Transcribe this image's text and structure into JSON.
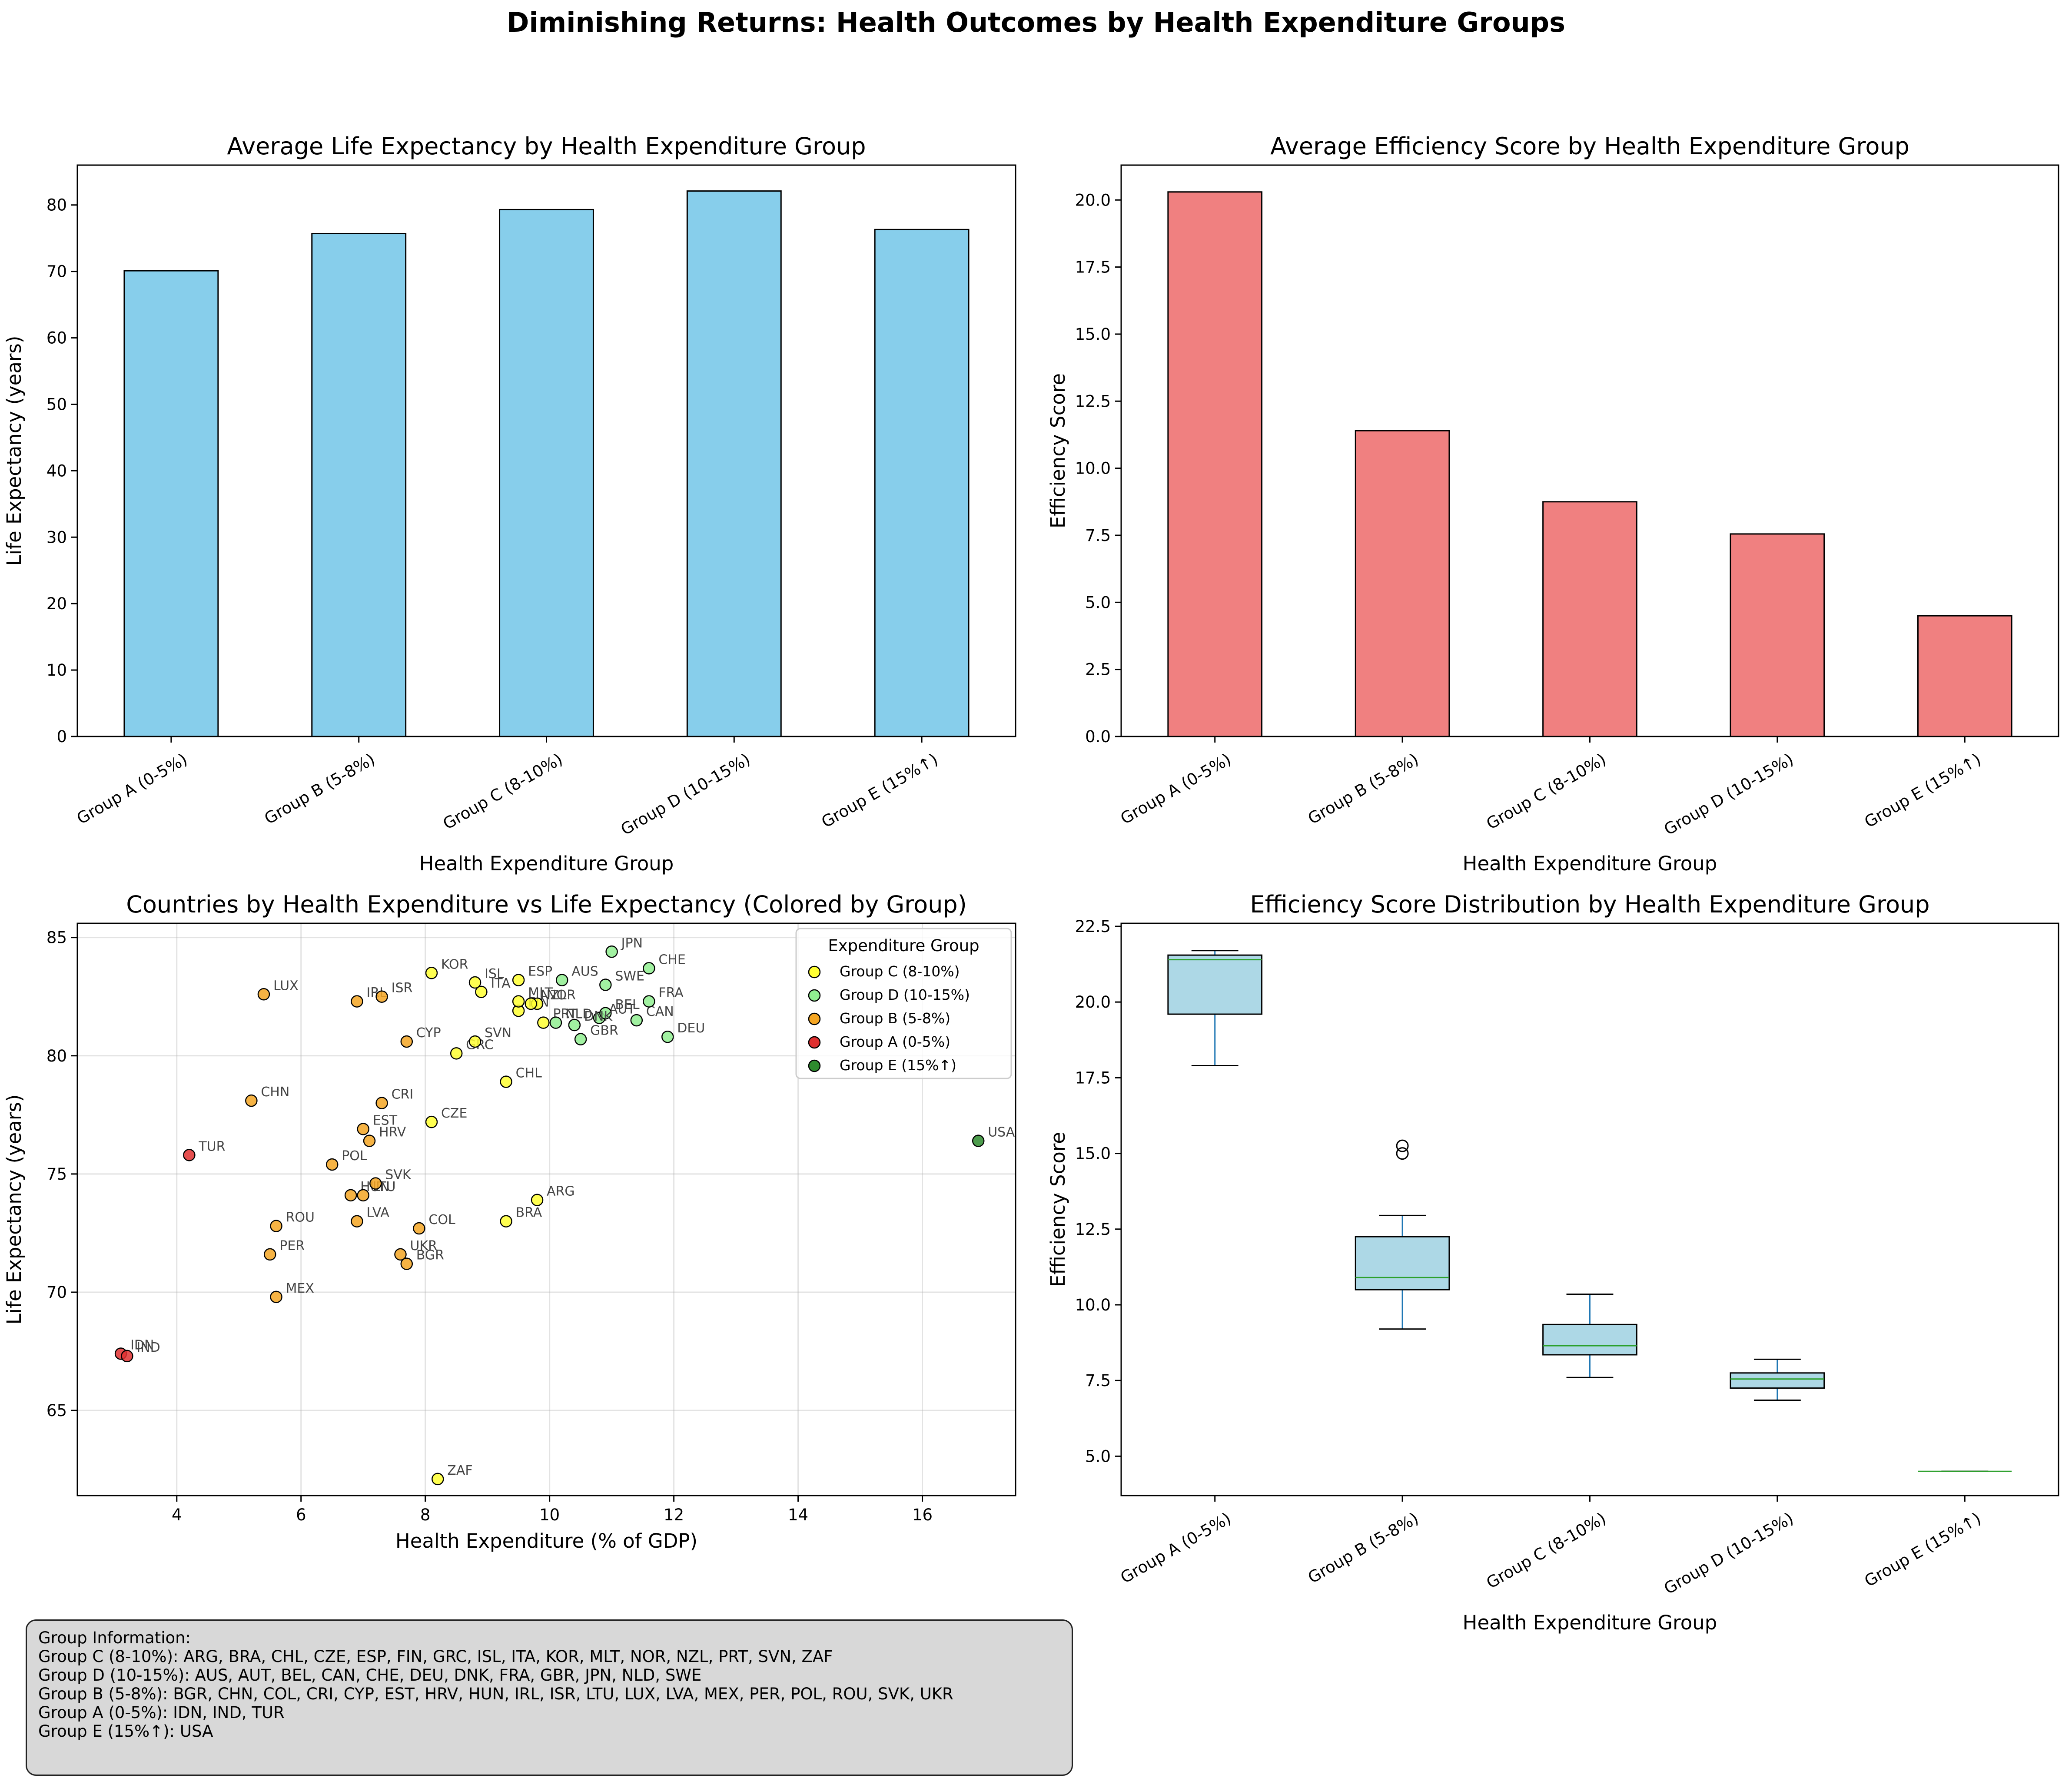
{
  "suptitle": "Diminishing Returns: Health Outcomes by Health Expenditure Groups",
  "colors": {
    "bar1": "#87ceeb",
    "bar2": "#f08080",
    "box_fill": "#add8e6",
    "median": "#2ca02c",
    "whisker": "#1f77b4",
    "groupA": "#e03030",
    "groupB": "#f5a623",
    "groupC": "#ffff33",
    "groupD": "#90ee90",
    "groupE": "#2e8b2e"
  },
  "chart_data": [
    {
      "type": "bar",
      "title": "Average Life Expectancy by Health Expenditure Group",
      "xlabel": "Health Expenditure Group",
      "ylabel": "Life Expectancy (years)",
      "categories": [
        "Group A (0-5%)",
        "Group B (5-8%)",
        "Group C (8-10%)",
        "Group D (10-15%)",
        "Group E (15%↑)"
      ],
      "values": [
        70.1,
        75.7,
        79.3,
        82.1,
        76.3
      ],
      "ylim": [
        0,
        86
      ],
      "yticks": [
        "0",
        "10",
        "20",
        "30",
        "40",
        "50",
        "60",
        "70",
        "80"
      ]
    },
    {
      "type": "bar",
      "title": "Average Efficiency Score by Health Expenditure Group",
      "xlabel": "Health Expenditure Group",
      "ylabel": "Efficiency Score",
      "categories": [
        "Group A (0-5%)",
        "Group B (5-8%)",
        "Group C (8-10%)",
        "Group D (10-15%)",
        "Group E (15%↑)"
      ],
      "values": [
        20.3,
        11.4,
        8.75,
        7.55,
        4.5
      ],
      "ylim": [
        0,
        21.3
      ],
      "yticks": [
        "0.0",
        "2.5",
        "5.0",
        "7.5",
        "10.0",
        "12.5",
        "15.0",
        "17.5",
        "20.0"
      ]
    },
    {
      "type": "scatter",
      "title": "Countries by Health Expenditure vs Life Expectancy (Colored by Group)",
      "xlabel": "Health Expenditure (% of GDP)",
      "ylabel": "Life Expectancy (years)",
      "xlim": [
        2.4,
        17.5
      ],
      "ylim": [
        61.4,
        85.6
      ],
      "xticks": [
        "4",
        "6",
        "8",
        "10",
        "12",
        "14",
        "16"
      ],
      "yticks": [
        "65",
        "70",
        "75",
        "80",
        "85"
      ],
      "grid": true,
      "legend_title": "Expenditure Group",
      "legend_position": "top-right",
      "series": [
        {
          "name": "Group C (8-10%)",
          "color": "#ffff33",
          "points": [
            {
              "label": "ARG",
              "x": 9.8,
              "y": 73.9
            },
            {
              "label": "BRA",
              "x": 9.3,
              "y": 73.0
            },
            {
              "label": "CHL",
              "x": 9.3,
              "y": 78.9
            },
            {
              "label": "CZE",
              "x": 8.1,
              "y": 77.2
            },
            {
              "label": "ESP",
              "x": 9.5,
              "y": 83.2
            },
            {
              "label": "FIN",
              "x": 9.5,
              "y": 81.9
            },
            {
              "label": "GRC",
              "x": 8.5,
              "y": 80.1
            },
            {
              "label": "ISL",
              "x": 8.8,
              "y": 83.1
            },
            {
              "label": "ITA",
              "x": 8.9,
              "y": 82.7
            },
            {
              "label": "KOR",
              "x": 8.1,
              "y": 83.5
            },
            {
              "label": "MLT",
              "x": 9.5,
              "y": 82.3
            },
            {
              "label": "NOR",
              "x": 9.8,
              "y": 82.2
            },
            {
              "label": "NZL",
              "x": 9.7,
              "y": 82.2
            },
            {
              "label": "PRT",
              "x": 9.9,
              "y": 81.4
            },
            {
              "label": "SVN",
              "x": 8.8,
              "y": 80.6
            },
            {
              "label": "ZAF",
              "x": 8.2,
              "y": 62.1
            }
          ]
        },
        {
          "name": "Group D (10-15%)",
          "color": "#90ee90",
          "points": [
            {
              "label": "AUS",
              "x": 10.2,
              "y": 83.2
            },
            {
              "label": "AUT",
              "x": 10.8,
              "y": 81.6
            },
            {
              "label": "BEL",
              "x": 10.9,
              "y": 81.8
            },
            {
              "label": "CAN",
              "x": 11.4,
              "y": 81.5
            },
            {
              "label": "CHE",
              "x": 11.6,
              "y": 83.7
            },
            {
              "label": "DEU",
              "x": 11.9,
              "y": 80.8
            },
            {
              "label": "DNK",
              "x": 10.4,
              "y": 81.3
            },
            {
              "label": "FRA",
              "x": 11.6,
              "y": 82.3
            },
            {
              "label": "GBR",
              "x": 10.5,
              "y": 80.7
            },
            {
              "label": "JPN",
              "x": 11.0,
              "y": 84.4
            },
            {
              "label": "NLD",
              "x": 10.1,
              "y": 81.4
            },
            {
              "label": "SWE",
              "x": 10.9,
              "y": 83.0
            }
          ]
        },
        {
          "name": "Group B (5-8%)",
          "color": "#f5a623",
          "points": [
            {
              "label": "BGR",
              "x": 7.7,
              "y": 71.2
            },
            {
              "label": "CHN",
              "x": 5.2,
              "y": 78.1
            },
            {
              "label": "COL",
              "x": 7.9,
              "y": 72.7
            },
            {
              "label": "CRI",
              "x": 7.3,
              "y": 78.0
            },
            {
              "label": "CYP",
              "x": 7.7,
              "y": 80.6
            },
            {
              "label": "EST",
              "x": 7.0,
              "y": 76.9
            },
            {
              "label": "HRV",
              "x": 7.1,
              "y": 76.4
            },
            {
              "label": "HUN",
              "x": 6.8,
              "y": 74.1
            },
            {
              "label": "IRL",
              "x": 6.9,
              "y": 82.3
            },
            {
              "label": "ISR",
              "x": 7.3,
              "y": 82.5
            },
            {
              "label": "LTU",
              "x": 7.0,
              "y": 74.1
            },
            {
              "label": "LUX",
              "x": 5.4,
              "y": 82.6
            },
            {
              "label": "LVA",
              "x": 6.9,
              "y": 73.0
            },
            {
              "label": "MEX",
              "x": 5.6,
              "y": 69.8
            },
            {
              "label": "PER",
              "x": 5.5,
              "y": 71.6
            },
            {
              "label": "POL",
              "x": 6.5,
              "y": 75.4
            },
            {
              "label": "ROU",
              "x": 5.6,
              "y": 72.8
            },
            {
              "label": "SVK",
              "x": 7.2,
              "y": 74.6
            },
            {
              "label": "UKR",
              "x": 7.6,
              "y": 71.6
            }
          ]
        },
        {
          "name": "Group A (0-5%)",
          "color": "#e03030",
          "points": [
            {
              "label": "IDN",
              "x": 3.1,
              "y": 67.4
            },
            {
              "label": "IND",
              "x": 3.2,
              "y": 67.3
            },
            {
              "label": "TUR",
              "x": 4.2,
              "y": 75.8
            }
          ]
        },
        {
          "name": "Group E (15%↑)",
          "color": "#2e8b2e",
          "points": [
            {
              "label": "USA",
              "x": 16.9,
              "y": 76.4
            }
          ]
        }
      ]
    },
    {
      "type": "box",
      "title": "Efficiency Score Distribution by Health Expenditure Group",
      "xlabel": "Health Expenditure Group",
      "ylabel": "Efficiency Score",
      "categories": [
        "Group A (0-5%)",
        "Group B (5-8%)",
        "Group C (8-10%)",
        "Group D (10-15%)",
        "Group E (15%↑)"
      ],
      "ylim": [
        3.7,
        22.6
      ],
      "yticks": [
        "5.0",
        "7.5",
        "10.0",
        "12.5",
        "15.0",
        "17.5",
        "20.0",
        "22.5"
      ],
      "boxes": [
        {
          "whislo": 17.9,
          "q1": 19.6,
          "med": 21.4,
          "q3": 21.55,
          "whishi": 21.7,
          "fliers": []
        },
        {
          "whislo": 9.2,
          "q1": 10.5,
          "med": 10.9,
          "q3": 12.25,
          "whishi": 12.95,
          "fliers": [
            15.0,
            15.25
          ]
        },
        {
          "whislo": 7.6,
          "q1": 8.35,
          "med": 8.65,
          "q3": 9.35,
          "whishi": 10.35,
          "fliers": []
        },
        {
          "whislo": 6.85,
          "q1": 7.25,
          "med": 7.55,
          "q3": 7.75,
          "whishi": 8.2,
          "fliers": []
        },
        {
          "whislo": 4.5,
          "q1": 4.5,
          "med": 4.5,
          "q3": 4.5,
          "whishi": 4.5,
          "fliers": []
        }
      ]
    }
  ],
  "info_box": {
    "lines": [
      "Group Information:",
      "Group C (8-10%): ARG, BRA, CHL, CZE, ESP, FIN, GRC, ISL, ITA, KOR, MLT, NOR, NZL, PRT, SVN, ZAF",
      "Group D (10-15%): AUS, AUT, BEL, CAN, CHE, DEU, DNK, FRA, GBR, JPN, NLD, SWE",
      "Group B (5-8%): BGR, CHN, COL, CRI, CYP, EST, HRV, HUN, IRL, ISR, LTU, LUX, LVA, MEX, PER, POL, ROU, SVK, UKR",
      "Group A (0-5%): IDN, IND, TUR",
      "Group E (15%↑): USA"
    ]
  }
}
